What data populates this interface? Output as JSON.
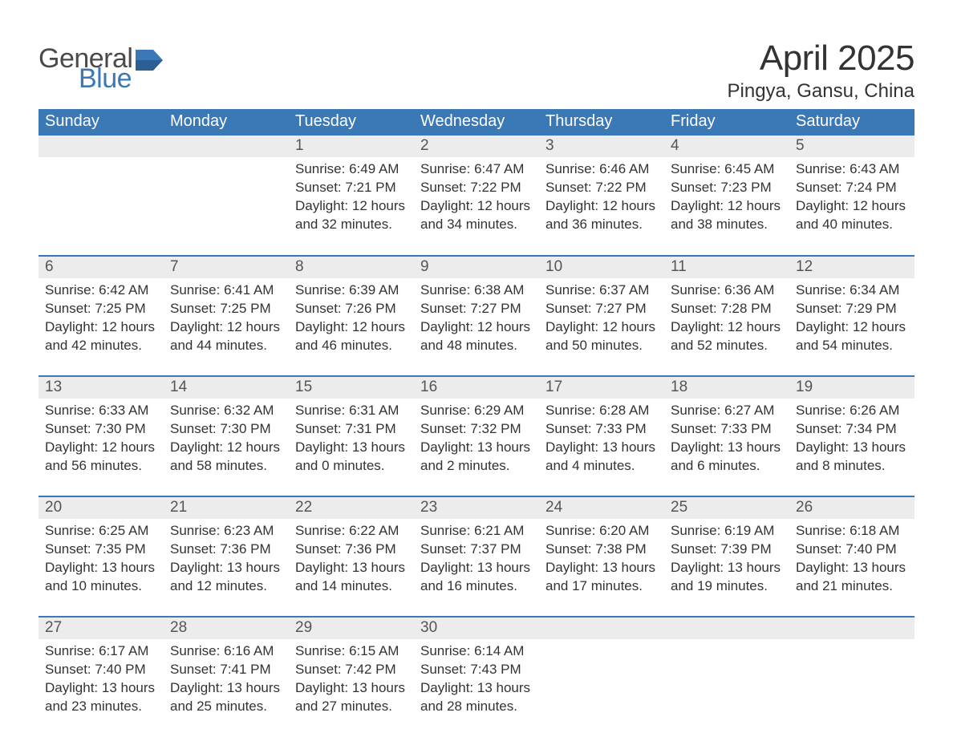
{
  "logo": {
    "text1": "General",
    "text2": "Blue",
    "color1": "#4a4a4a",
    "color2": "#3a78b6"
  },
  "title": "April 2025",
  "location": "Pingya, Gansu, China",
  "colors": {
    "header_bg": "#3a78b6",
    "header_text": "#ffffff",
    "daynum_bg": "#ececec",
    "daynum_text": "#555555",
    "body_text": "#333333",
    "row_border": "#3a78b6",
    "page_bg": "#ffffff"
  },
  "fonts": {
    "title_size_pt": 33,
    "location_size_pt": 18,
    "header_size_pt": 15,
    "daynum_size_pt": 14,
    "content_size_pt": 13
  },
  "weekdays": [
    "Sunday",
    "Monday",
    "Tuesday",
    "Wednesday",
    "Thursday",
    "Friday",
    "Saturday"
  ],
  "weeks": [
    [
      null,
      null,
      {
        "n": "1",
        "sunrise": "Sunrise: 6:49 AM",
        "sunset": "Sunset: 7:21 PM",
        "day1": "Daylight: 12 hours",
        "day2": "and 32 minutes."
      },
      {
        "n": "2",
        "sunrise": "Sunrise: 6:47 AM",
        "sunset": "Sunset: 7:22 PM",
        "day1": "Daylight: 12 hours",
        "day2": "and 34 minutes."
      },
      {
        "n": "3",
        "sunrise": "Sunrise: 6:46 AM",
        "sunset": "Sunset: 7:22 PM",
        "day1": "Daylight: 12 hours",
        "day2": "and 36 minutes."
      },
      {
        "n": "4",
        "sunrise": "Sunrise: 6:45 AM",
        "sunset": "Sunset: 7:23 PM",
        "day1": "Daylight: 12 hours",
        "day2": "and 38 minutes."
      },
      {
        "n": "5",
        "sunrise": "Sunrise: 6:43 AM",
        "sunset": "Sunset: 7:24 PM",
        "day1": "Daylight: 12 hours",
        "day2": "and 40 minutes."
      }
    ],
    [
      {
        "n": "6",
        "sunrise": "Sunrise: 6:42 AM",
        "sunset": "Sunset: 7:25 PM",
        "day1": "Daylight: 12 hours",
        "day2": "and 42 minutes."
      },
      {
        "n": "7",
        "sunrise": "Sunrise: 6:41 AM",
        "sunset": "Sunset: 7:25 PM",
        "day1": "Daylight: 12 hours",
        "day2": "and 44 minutes."
      },
      {
        "n": "8",
        "sunrise": "Sunrise: 6:39 AM",
        "sunset": "Sunset: 7:26 PM",
        "day1": "Daylight: 12 hours",
        "day2": "and 46 minutes."
      },
      {
        "n": "9",
        "sunrise": "Sunrise: 6:38 AM",
        "sunset": "Sunset: 7:27 PM",
        "day1": "Daylight: 12 hours",
        "day2": "and 48 minutes."
      },
      {
        "n": "10",
        "sunrise": "Sunrise: 6:37 AM",
        "sunset": "Sunset: 7:27 PM",
        "day1": "Daylight: 12 hours",
        "day2": "and 50 minutes."
      },
      {
        "n": "11",
        "sunrise": "Sunrise: 6:36 AM",
        "sunset": "Sunset: 7:28 PM",
        "day1": "Daylight: 12 hours",
        "day2": "and 52 minutes."
      },
      {
        "n": "12",
        "sunrise": "Sunrise: 6:34 AM",
        "sunset": "Sunset: 7:29 PM",
        "day1": "Daylight: 12 hours",
        "day2": "and 54 minutes."
      }
    ],
    [
      {
        "n": "13",
        "sunrise": "Sunrise: 6:33 AM",
        "sunset": "Sunset: 7:30 PM",
        "day1": "Daylight: 12 hours",
        "day2": "and 56 minutes."
      },
      {
        "n": "14",
        "sunrise": "Sunrise: 6:32 AM",
        "sunset": "Sunset: 7:30 PM",
        "day1": "Daylight: 12 hours",
        "day2": "and 58 minutes."
      },
      {
        "n": "15",
        "sunrise": "Sunrise: 6:31 AM",
        "sunset": "Sunset: 7:31 PM",
        "day1": "Daylight: 13 hours",
        "day2": "and 0 minutes."
      },
      {
        "n": "16",
        "sunrise": "Sunrise: 6:29 AM",
        "sunset": "Sunset: 7:32 PM",
        "day1": "Daylight: 13 hours",
        "day2": "and 2 minutes."
      },
      {
        "n": "17",
        "sunrise": "Sunrise: 6:28 AM",
        "sunset": "Sunset: 7:33 PM",
        "day1": "Daylight: 13 hours",
        "day2": "and 4 minutes."
      },
      {
        "n": "18",
        "sunrise": "Sunrise: 6:27 AM",
        "sunset": "Sunset: 7:33 PM",
        "day1": "Daylight: 13 hours",
        "day2": "and 6 minutes."
      },
      {
        "n": "19",
        "sunrise": "Sunrise: 6:26 AM",
        "sunset": "Sunset: 7:34 PM",
        "day1": "Daylight: 13 hours",
        "day2": "and 8 minutes."
      }
    ],
    [
      {
        "n": "20",
        "sunrise": "Sunrise: 6:25 AM",
        "sunset": "Sunset: 7:35 PM",
        "day1": "Daylight: 13 hours",
        "day2": "and 10 minutes."
      },
      {
        "n": "21",
        "sunrise": "Sunrise: 6:23 AM",
        "sunset": "Sunset: 7:36 PM",
        "day1": "Daylight: 13 hours",
        "day2": "and 12 minutes."
      },
      {
        "n": "22",
        "sunrise": "Sunrise: 6:22 AM",
        "sunset": "Sunset: 7:36 PM",
        "day1": "Daylight: 13 hours",
        "day2": "and 14 minutes."
      },
      {
        "n": "23",
        "sunrise": "Sunrise: 6:21 AM",
        "sunset": "Sunset: 7:37 PM",
        "day1": "Daylight: 13 hours",
        "day2": "and 16 minutes."
      },
      {
        "n": "24",
        "sunrise": "Sunrise: 6:20 AM",
        "sunset": "Sunset: 7:38 PM",
        "day1": "Daylight: 13 hours",
        "day2": "and 17 minutes."
      },
      {
        "n": "25",
        "sunrise": "Sunrise: 6:19 AM",
        "sunset": "Sunset: 7:39 PM",
        "day1": "Daylight: 13 hours",
        "day2": "and 19 minutes."
      },
      {
        "n": "26",
        "sunrise": "Sunrise: 6:18 AM",
        "sunset": "Sunset: 7:40 PM",
        "day1": "Daylight: 13 hours",
        "day2": "and 21 minutes."
      }
    ],
    [
      {
        "n": "27",
        "sunrise": "Sunrise: 6:17 AM",
        "sunset": "Sunset: 7:40 PM",
        "day1": "Daylight: 13 hours",
        "day2": "and 23 minutes."
      },
      {
        "n": "28",
        "sunrise": "Sunrise: 6:16 AM",
        "sunset": "Sunset: 7:41 PM",
        "day1": "Daylight: 13 hours",
        "day2": "and 25 minutes."
      },
      {
        "n": "29",
        "sunrise": "Sunrise: 6:15 AM",
        "sunset": "Sunset: 7:42 PM",
        "day1": "Daylight: 13 hours",
        "day2": "and 27 minutes."
      },
      {
        "n": "30",
        "sunrise": "Sunrise: 6:14 AM",
        "sunset": "Sunset: 7:43 PM",
        "day1": "Daylight: 13 hours",
        "day2": "and 28 minutes."
      },
      null,
      null,
      null
    ]
  ]
}
